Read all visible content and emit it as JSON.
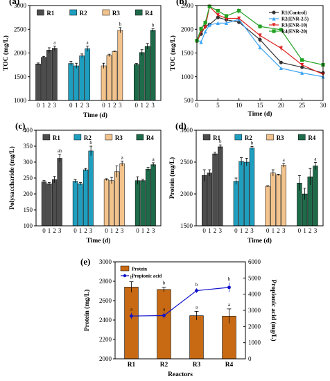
{
  "colors": {
    "R1": "#4d4d4d",
    "R2": "#1f9fc0",
    "R3": "#f3c38d",
    "R4": "#1e6b4a",
    "line_R1": "#333333",
    "line_R2": "#3da5f5",
    "line_R3": "#e02020",
    "line_R4": "#22a022",
    "e_bar": "#c86a14",
    "e_line": "#1010cc"
  },
  "chart_data": [
    {
      "id": "a",
      "panel_label": "(a)",
      "type": "bar",
      "ylabel": "TOC (mg/L)",
      "xlabel": "Time (d)",
      "ylim": [
        1000,
        3000
      ],
      "yticks": [
        1000,
        1500,
        2000,
        2500,
        3000
      ],
      "categories": [
        "0",
        "1",
        "2",
        "3"
      ],
      "legend_position": "top",
      "series": [
        {
          "name": "R1",
          "values": [
            1770,
            1910,
            2060,
            2100
          ],
          "errors": [
            20,
            20,
            50,
            45
          ],
          "letters": [
            "",
            "",
            "",
            "a"
          ]
        },
        {
          "name": "R2",
          "values": [
            1780,
            1730,
            1940,
            2090
          ],
          "errors": [
            45,
            55,
            40,
            55
          ],
          "letters": [
            "",
            "",
            "",
            "a"
          ]
        },
        {
          "name": "R3",
          "values": [
            1730,
            1950,
            2030,
            2480
          ],
          "errors": [
            55,
            25,
            10,
            55
          ],
          "letters": [
            "",
            "",
            "",
            "b"
          ]
        },
        {
          "name": "R4",
          "values": [
            1760,
            2010,
            2140,
            2480
          ],
          "errors": [
            20,
            60,
            60,
            30
          ],
          "letters": [
            "",
            "",
            "",
            "b"
          ]
        }
      ]
    },
    {
      "id": "b",
      "panel_label": "(b)",
      "type": "line",
      "ylabel": "TOC (mg/L)",
      "xlabel": "Time (d)",
      "xlim": [
        0,
        30
      ],
      "ylim": [
        500,
        2500
      ],
      "xticks": [
        0,
        5,
        10,
        15,
        20,
        25,
        30
      ],
      "yticks": [
        500,
        1000,
        1500,
        2000,
        2500
      ],
      "legend_position": "top-right",
      "x": [
        0,
        1,
        2,
        3,
        5,
        7,
        10,
        15,
        20,
        25,
        30
      ],
      "series": [
        {
          "name": "R1(Control)",
          "values": [
            1760,
            1900,
            2060,
            2100,
            2250,
            2200,
            2150,
            1780,
            1300,
            1200,
            1080
          ],
          "errors": [
            20,
            20,
            40,
            40,
            40,
            40,
            40,
            60,
            30,
            30,
            30
          ]
        },
        {
          "name": "R2(ENR-2.5)",
          "values": [
            1780,
            1730,
            1950,
            2090,
            2130,
            2130,
            2210,
            1620,
            1180,
            1080,
            1000
          ],
          "errors": [
            40,
            50,
            40,
            50,
            40,
            40,
            40,
            60,
            30,
            40,
            30
          ]
        },
        {
          "name": "R3(ENR-10)",
          "values": [
            1730,
            1950,
            2040,
            2480,
            2300,
            2230,
            2230,
            1870,
            1600,
            1250,
            1050
          ],
          "errors": [
            50,
            30,
            20,
            50,
            50,
            50,
            40,
            50,
            60,
            30,
            30
          ]
        },
        {
          "name": "R4(ENR-20)",
          "values": [
            1760,
            2010,
            2140,
            2480,
            2390,
            2280,
            2390,
            2060,
            1990,
            1350,
            1250
          ],
          "errors": [
            20,
            50,
            50,
            30,
            40,
            40,
            60,
            40,
            40,
            30,
            30
          ]
        }
      ]
    },
    {
      "id": "c",
      "panel_label": "(c)",
      "type": "bar",
      "ylabel": "Polysaccharide (mg/L)",
      "xlabel": "Time (d)",
      "ylim": [
        100,
        400
      ],
      "yticks": [
        100,
        150,
        200,
        250,
        300,
        350,
        400
      ],
      "categories": [
        "0",
        "1",
        "2",
        "3"
      ],
      "legend_position": "top",
      "series": [
        {
          "name": "R1",
          "values": [
            238,
            232,
            245,
            312
          ],
          "errors": [
            4,
            4,
            10,
            12
          ],
          "letters": [
            "",
            "",
            "",
            "ab"
          ]
        },
        {
          "name": "R2",
          "values": [
            240,
            232,
            276,
            335
          ],
          "errors": [
            5,
            4,
            4,
            15
          ],
          "letters": [
            "",
            "",
            "",
            "b"
          ]
        },
        {
          "name": "R3",
          "values": [
            245,
            242,
            270,
            295
          ],
          "errors": [
            3,
            10,
            18,
            8
          ],
          "letters": [
            "",
            "",
            "",
            "a"
          ]
        },
        {
          "name": "R4",
          "values": [
            242,
            242,
            278,
            292
          ],
          "errors": [
            12,
            4,
            6,
            6
          ],
          "letters": [
            "",
            "",
            "",
            "a"
          ]
        }
      ]
    },
    {
      "id": "d",
      "panel_label": "(d)",
      "type": "bar",
      "ylabel": "Protein (mg/L)",
      "xlabel": "Time (d)",
      "ylim": [
        1500,
        3000
      ],
      "yticks": [
        1500,
        2000,
        2500,
        3000
      ],
      "categories": [
        "0",
        "1",
        "2",
        "3"
      ],
      "legend_position": "top",
      "series": [
        {
          "name": "R1",
          "values": [
            2290,
            2330,
            2630,
            2740
          ],
          "errors": [
            90,
            50,
            25,
            30
          ],
          "letters": [
            "",
            "",
            "",
            "b"
          ]
        },
        {
          "name": "R2",
          "values": [
            2200,
            2510,
            2500,
            2720
          ],
          "errors": [
            50,
            60,
            60,
            25
          ],
          "letters": [
            "",
            "",
            "",
            "b"
          ]
        },
        {
          "name": "R3",
          "values": [
            2120,
            2330,
            2300,
            2450
          ],
          "errors": [
            10,
            50,
            10,
            30
          ],
          "letters": [
            "",
            "",
            "",
            "a"
          ]
        },
        {
          "name": "R4",
          "values": [
            2170,
            2000,
            2270,
            2440
          ],
          "errors": [
            120,
            90,
            130,
            55
          ],
          "letters": [
            "",
            "",
            "",
            "a"
          ]
        }
      ]
    },
    {
      "id": "e",
      "panel_label": "(e)",
      "type": "bar",
      "ylabel": "Protein (mg/L)",
      "y2label": "Propionic acid (mg/L)",
      "xlabel": "Reactors",
      "ylim": [
        2000,
        3000
      ],
      "y2lim": [
        0,
        6000
      ],
      "yticks": [
        2000,
        2200,
        2400,
        2600,
        2800,
        3000
      ],
      "y2ticks": [
        0,
        1000,
        2000,
        3000,
        4000,
        5000,
        6000
      ],
      "categories": [
        "R1",
        "R2",
        "R3",
        "R4"
      ],
      "legend_position": "top-left",
      "series": [
        {
          "name": "Protein",
          "axis": "left",
          "values": [
            2740,
            2715,
            2445,
            2440
          ],
          "errors": [
            55,
            25,
            45,
            75
          ],
          "letters": [
            "b",
            "b",
            "a",
            "a"
          ]
        },
        {
          "name": "Propionic acid",
          "axis": "right",
          "values": [
            2650,
            2680,
            4220,
            4420
          ],
          "errors": [
            200,
            180,
            150,
            300
          ],
          "letters": [
            "a",
            "a",
            "b",
            "b"
          ]
        }
      ]
    }
  ]
}
